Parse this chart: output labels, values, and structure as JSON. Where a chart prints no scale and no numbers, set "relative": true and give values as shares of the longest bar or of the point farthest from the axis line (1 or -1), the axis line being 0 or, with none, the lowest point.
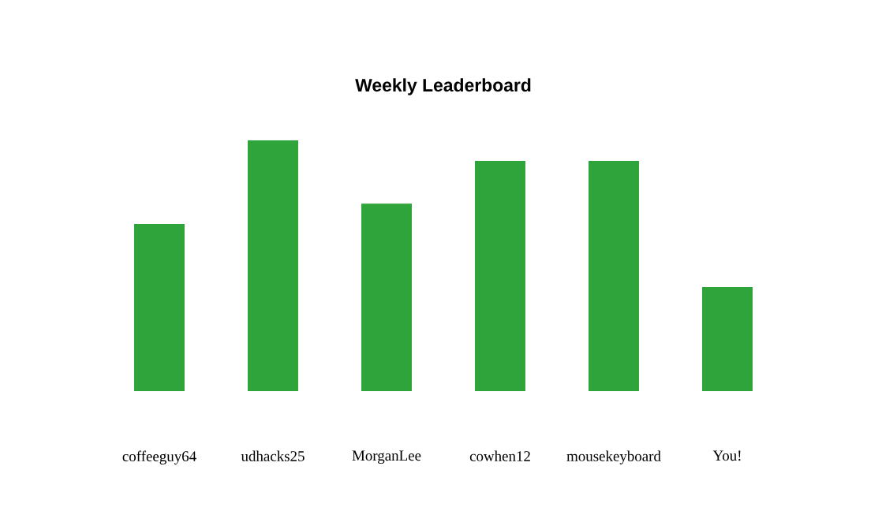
{
  "chart_data": {
    "type": "bar",
    "title": "Weekly Leaderboard",
    "relative": true,
    "color": "#2ea43a",
    "categories": [
      "coffeeguy64",
      "udhacks25",
      "MorganLee",
      "cowhen12",
      "mousekeyboard",
      "You!"
    ],
    "values": [
      0.667,
      1,
      0.748,
      0.918,
      0.918,
      0.415
    ]
  }
}
